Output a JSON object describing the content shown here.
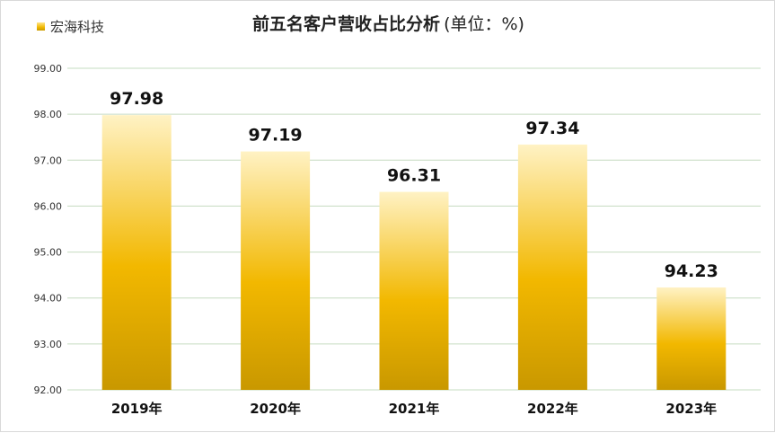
{
  "legend": {
    "label": "宏海科技"
  },
  "title": {
    "main": "前五名客户营收占比分析",
    "unit": "(单位：%)"
  },
  "chart_data": {
    "type": "bar",
    "title": "前五名客户营收占比分析(单位：%)",
    "categories": [
      "2019年",
      "2020年",
      "2021年",
      "2022年",
      "2023年"
    ],
    "series": [
      {
        "name": "宏海科技",
        "values": [
          97.98,
          97.19,
          96.31,
          97.34,
          94.23
        ]
      }
    ],
    "value_labels": [
      "97.98",
      "97.19",
      "96.31",
      "97.34",
      "94.23"
    ],
    "y_ticks": [
      "92.00",
      "93.00",
      "94.00",
      "95.00",
      "96.00",
      "97.00",
      "98.00",
      "99.00"
    ],
    "ylim": [
      92,
      99
    ],
    "grid": true,
    "legend_position": "top-left",
    "bar_gradient": [
      "#fff2c4",
      "#f2b800",
      "#c99800"
    ],
    "gridline_color": "#c6dcc0"
  }
}
